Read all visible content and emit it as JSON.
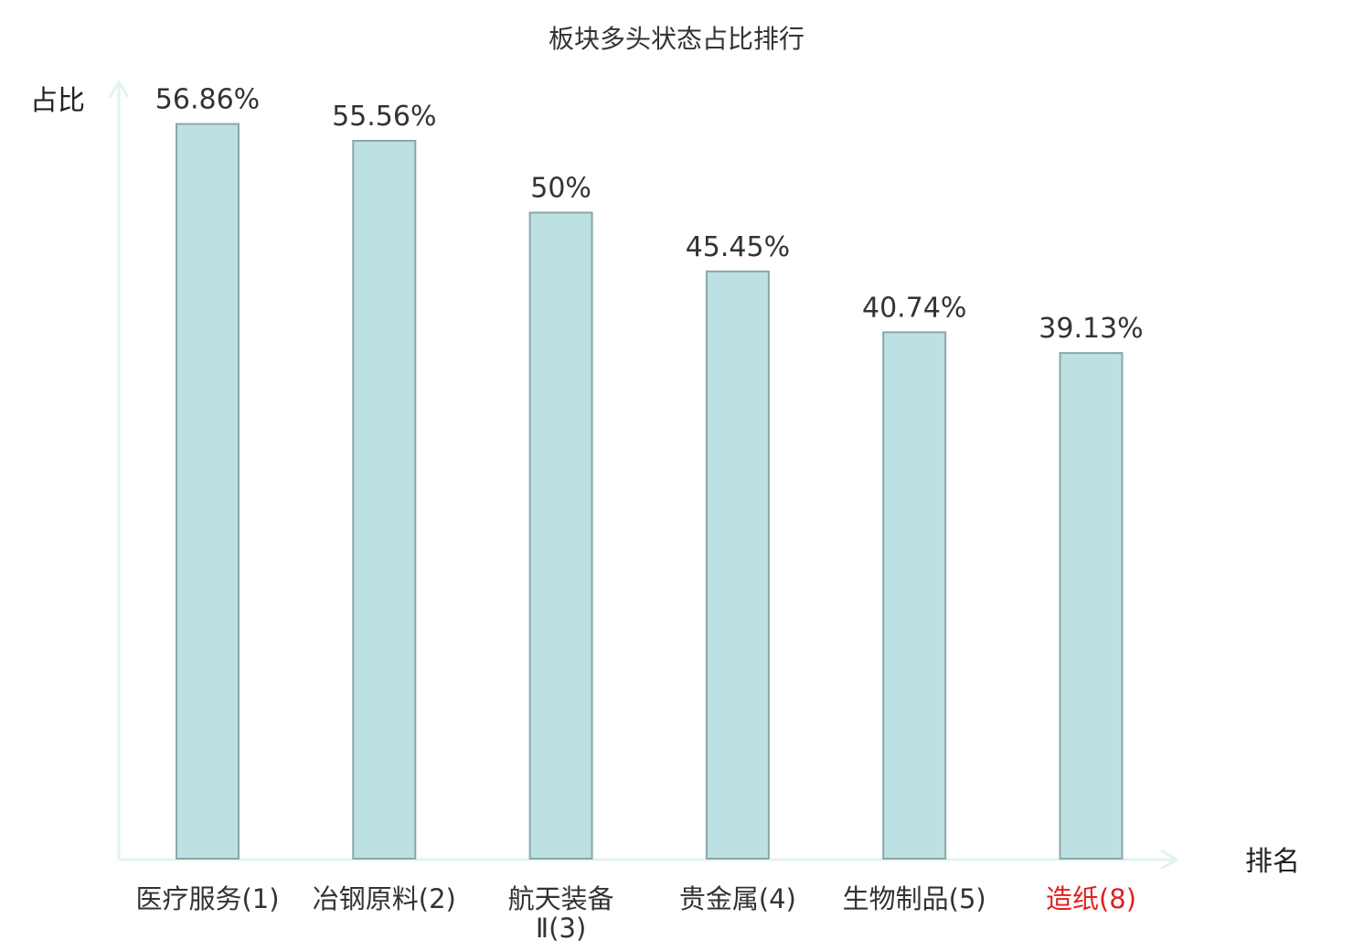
{
  "chart_data": {
    "type": "bar",
    "title": "板块多头状态占比排行",
    "ylabel": "占比",
    "xlabel": "排名",
    "categories": [
      {
        "name": "医疗服务",
        "rank": "(1)"
      },
      {
        "name": "冶钢原料",
        "rank": "(2)"
      },
      {
        "name": "航天装备",
        "name2": "Ⅱ",
        "rank": "(3)"
      },
      {
        "name": "贵金属",
        "rank": "(4)"
      },
      {
        "name": "生物制品",
        "rank": "(5)"
      },
      {
        "name": "造纸",
        "rank": "(8)",
        "highlight": true
      }
    ],
    "values": [
      56.86,
      55.56,
      50,
      45.45,
      40.74,
      39.13
    ],
    "value_labels": [
      "56.86%",
      "55.56%",
      "50%",
      "45.45%",
      "40.74%",
      "39.13%"
    ],
    "ylim": [
      0,
      60
    ],
    "grid": false,
    "colors": {
      "bar_fill": "#bde0e3",
      "bar_stroke": "#8aa7aa",
      "axis": "#e2f3ef",
      "text": "#333333",
      "highlight": "#e02020"
    }
  }
}
